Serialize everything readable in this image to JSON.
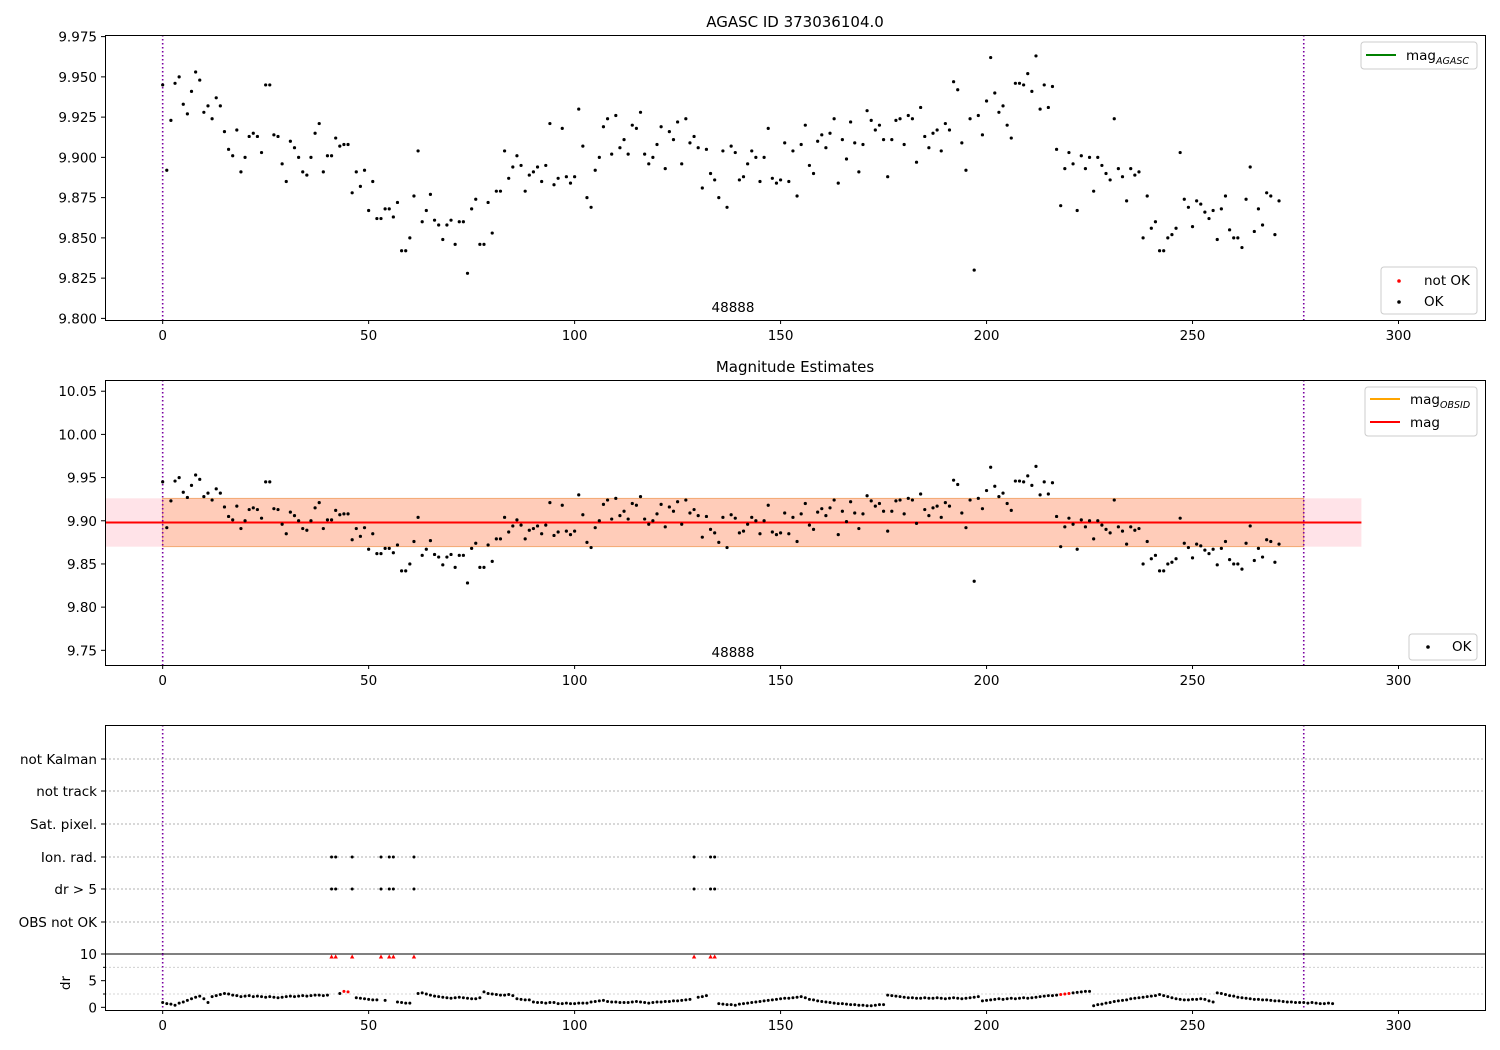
{
  "chart_data": [
    {
      "type": "scatter",
      "title": "AGASC ID 373036104.0",
      "annotation": "48888",
      "xlim": [
        -14,
        321
      ],
      "ylim": [
        9.799,
        9.976
      ],
      "xticks": [
        0,
        50,
        100,
        150,
        200,
        250,
        300
      ],
      "yticks": [
        9.8,
        9.825,
        9.85,
        9.875,
        9.9,
        9.925,
        9.95,
        9.975
      ],
      "y_decimals": 3,
      "vlines": [
        0,
        277
      ],
      "vline_color": "#7a00a0",
      "legend_lines": [
        {
          "label": "mag",
          "sub": "AGASC",
          "color": "#008000"
        }
      ],
      "legend_lines_position": "upper right",
      "legend_points": [
        {
          "label": "not OK",
          "color": "#ff0000"
        },
        {
          "label": "OK",
          "color": "#000000"
        }
      ],
      "legend_points_position": "lower right",
      "series": [
        {
          "name": "OK",
          "color": "#000000",
          "x_start": 0,
          "x_step": 1,
          "values": []
        }
      ]
    },
    {
      "type": "scatter",
      "title": "Magnitude Estimates",
      "annotation": "48888",
      "xlim": [
        -14,
        321
      ],
      "ylim": [
        9.733,
        10.063
      ],
      "xticks": [
        0,
        50,
        100,
        150,
        200,
        250,
        300
      ],
      "yticks": [
        9.75,
        9.8,
        9.85,
        9.9,
        9.95,
        10.0,
        10.05
      ],
      "y_decimals": 2,
      "vlines": [
        0,
        277
      ],
      "vline_color": "#7a00a0",
      "mag": 9.898,
      "mag_color": "#ff0000",
      "band_outer": {
        "x_range": [
          -14,
          291
        ],
        "y_range": [
          9.87,
          9.926
        ],
        "color": "#ffc0cb"
      },
      "band_inner": {
        "x_range": [
          0,
          277
        ],
        "y_range": [
          9.87,
          9.926
        ],
        "color": "#ffb080"
      },
      "legend_lines": [
        {
          "label": "mag",
          "sub": "OBSID",
          "color": "#ffa500"
        },
        {
          "label": "mag",
          "sub": "",
          "color": "#ff0000"
        }
      ],
      "legend_lines_position": "upper right",
      "legend_points": [
        {
          "label": "OK",
          "color": "#000000"
        }
      ],
      "legend_points_position": "lower right",
      "series": [
        {
          "name": "OK",
          "color": "#000000",
          "x_start": 0,
          "x_step": 1,
          "values": []
        }
      ]
    },
    {
      "type": "scatter",
      "title": "",
      "xlim": [
        -14,
        321
      ],
      "categories": [
        "not Kalman",
        "not track",
        "Sat. pixel.",
        "Ion. rad.",
        "dr > 5",
        "OBS not OK"
      ],
      "vlines": [
        0,
        277
      ],
      "vline_color": "#7a00a0",
      "flags": {
        "Ion. rad.": [
          41,
          42,
          46,
          53,
          55,
          56,
          61,
          129,
          133,
          134
        ],
        "dr > 5": [
          41,
          42,
          46,
          53,
          55,
          56,
          61,
          129,
          133,
          134
        ]
      }
    },
    {
      "type": "scatter",
      "title": "",
      "ylabel": "dr",
      "xlim": [
        -14,
        321
      ],
      "ylim": [
        -0.5,
        10
      ],
      "xticks": [
        0,
        50,
        100,
        150,
        200,
        250,
        300
      ],
      "yticks": [
        0,
        5,
        10
      ],
      "vlines": [
        0,
        277
      ],
      "vline_color": "#7a00a0",
      "clipped_x": [
        41,
        42,
        46,
        53,
        55,
        56,
        61,
        129,
        133,
        134
      ],
      "clipped_color": "#ff0000",
      "not_ok_x": [
        44,
        45,
        218,
        219,
        220
      ],
      "series": [
        {
          "name": "dr",
          "color": "#000000",
          "x_start": 0,
          "x_step": 1,
          "values": []
        }
      ]
    }
  ],
  "top_series_values": [
    9.945,
    9.892,
    9.923,
    9.946,
    9.95,
    9.933,
    9.927,
    9.941,
    9.953,
    9.948,
    9.928,
    9.932,
    9.924,
    9.937,
    9.932,
    9.916,
    9.905,
    9.901,
    9.917,
    9.891,
    9.9,
    9.913,
    9.915,
    9.913,
    9.903,
    9.945,
    9.945,
    9.914,
    9.913,
    9.896,
    9.885,
    9.91,
    9.906,
    9.9,
    9.891,
    9.889,
    9.9,
    9.915,
    9.921,
    9.891,
    9.901,
    9.901,
    9.912,
    9.907,
    9.908,
    9.908,
    9.878,
    9.891,
    9.882,
    9.892,
    9.867,
    9.885,
    9.862,
    9.862,
    9.868,
    9.868,
    9.863,
    9.872,
    9.842,
    9.842,
    9.85,
    9.876,
    9.904,
    9.86,
    9.867,
    9.877,
    9.861,
    9.858,
    9.849,
    9.858,
    9.861,
    9.846,
    9.86,
    9.86,
    9.828,
    9.868,
    9.874,
    9.846,
    9.846,
    9.872,
    9.853,
    9.879,
    9.879,
    9.904,
    9.887,
    9.894,
    9.901,
    9.895,
    9.879,
    9.889,
    9.891,
    9.894,
    9.885,
    9.895,
    9.921,
    9.883,
    9.887,
    9.918,
    9.888,
    9.884,
    9.888,
    9.93,
    9.907,
    9.875,
    9.869,
    9.892,
    9.9,
    9.919,
    9.924,
    9.902,
    9.926,
    9.906,
    9.911,
    9.902,
    9.92,
    9.918,
    9.928,
    9.902,
    9.896,
    9.9,
    9.908,
    9.919,
    9.893,
    9.916,
    9.911,
    9.922,
    9.896,
    9.924,
    9.909,
    9.913,
    9.906,
    9.881,
    9.905,
    9.89,
    9.886,
    9.875,
    9.904,
    9.869,
    9.907,
    9.903,
    9.886,
    9.888,
    9.896,
    9.904,
    9.9,
    9.885,
    9.9,
    9.918,
    9.887,
    9.884,
    9.886,
    9.909,
    9.885,
    9.904,
    9.876,
    9.908,
    9.92,
    9.895,
    9.89,
    9.91,
    9.914,
    9.906,
    9.915,
    9.924,
    9.884,
    9.911,
    9.899,
    9.922,
    9.909,
    9.891,
    9.908,
    9.929,
    9.923,
    9.917,
    9.92,
    9.911,
    9.888,
    9.911,
    9.923,
    9.924,
    9.908,
    9.926,
    9.924,
    9.897,
    9.931,
    9.913,
    9.906,
    9.915,
    9.917,
    9.904,
    9.921,
    9.917,
    9.947,
    9.942,
    9.909,
    9.892,
    9.924,
    9.83,
    9.926,
    9.914,
    9.935,
    9.962,
    9.94,
    9.928,
    9.932,
    9.92,
    9.912,
    9.946,
    9.946,
    9.945,
    9.952,
    9.941,
    9.963,
    9.93,
    9.945,
    9.931,
    9.944,
    9.905,
    9.87,
    9.893,
    9.903,
    9.896,
    9.867,
    9.901,
    9.893,
    9.9,
    9.879,
    9.9,
    9.895,
    9.89,
    9.886,
    9.924,
    9.893,
    9.888,
    9.873,
    9.893,
    9.889,
    9.891,
    9.85,
    9.876,
    9.856,
    9.86,
    9.842,
    9.842,
    9.85,
    9.852,
    9.856,
    9.903,
    9.874,
    9.869,
    9.857,
    9.873,
    9.871,
    9.866,
    9.862,
    9.867,
    9.849,
    9.868,
    9.876,
    9.855,
    9.85,
    9.85,
    9.844,
    9.874,
    9.894,
    9.854,
    9.868,
    9.858,
    9.878,
    9.876,
    9.852,
    9.873
  ],
  "dr_values": [
    0.9,
    0.7,
    0.6,
    0.4,
    0.8,
    1.0,
    1.3,
    1.6,
    1.9,
    2.1,
    1.6,
    0.9,
    2.0,
    2.2,
    2.4,
    2.6,
    2.5,
    2.3,
    2.2,
    2.0,
    2.1,
    2.2,
    2.0,
    2.1,
    2.0,
    1.9,
    2.0,
    1.9,
    1.8,
    1.9,
    2.0,
    2.1,
    2.0,
    2.1,
    2.2,
    2.1,
    2.2,
    2.3,
    2.3,
    2.2,
    2.3,
    10.0,
    10.0,
    2.6,
    3.0,
    2.9,
    10.0,
    1.8,
    1.7,
    1.6,
    1.5,
    1.4,
    1.4,
    10.0,
    1.3,
    10.0,
    10.0,
    1.0,
    0.9,
    0.8,
    0.8,
    10.0,
    2.6,
    2.7,
    2.5,
    2.3,
    2.1,
    2.0,
    1.9,
    1.8,
    1.7,
    1.8,
    1.9,
    1.8,
    1.7,
    1.6,
    1.6,
    1.8,
    2.9,
    2.6,
    2.5,
    2.4,
    2.3,
    2.3,
    2.4,
    2.2,
    1.6,
    1.5,
    1.4,
    1.4,
    1.0,
    0.9,
    0.9,
    0.8,
    0.9,
    0.9,
    0.7,
    0.7,
    0.8,
    0.7,
    0.7,
    0.8,
    0.8,
    0.8,
    1.0,
    1.1,
    1.2,
    1.3,
    1.1,
    1.0,
    1.0,
    0.9,
    0.9,
    0.9,
    1.0,
    1.1,
    1.0,
    0.9,
    0.8,
    0.9,
    1.0,
    1.0,
    1.1,
    1.1,
    1.2,
    1.2,
    1.3,
    1.4,
    1.5,
    10.0,
    1.9,
    2.0,
    2.2,
    10.0,
    10.0,
    0.7,
    0.6,
    0.5,
    0.5,
    0.4,
    0.6,
    0.7,
    0.8,
    0.9,
    1.0,
    1.1,
    1.2,
    1.3,
    1.4,
    1.5,
    1.6,
    1.7,
    1.7,
    1.8,
    1.9,
    2.0,
    1.8,
    1.5,
    1.4,
    1.2,
    1.1,
    1.0,
    0.9,
    0.8,
    0.7,
    0.7,
    0.6,
    0.5,
    0.5,
    0.4,
    0.4,
    0.3,
    0.3,
    0.4,
    0.5,
    0.5,
    2.3,
    2.2,
    2.1,
    2.0,
    1.9,
    1.8,
    1.8,
    1.7,
    1.7,
    1.8,
    1.7,
    1.7,
    1.8,
    1.7,
    1.6,
    1.7,
    1.8,
    1.7,
    1.6,
    1.7,
    1.8,
    1.9,
    2.0,
    1.2,
    1.3,
    1.4,
    1.5,
    1.6,
    1.5,
    1.6,
    1.7,
    1.6,
    1.7,
    1.8,
    1.7,
    1.8,
    1.9,
    2.0,
    2.1,
    2.2,
    2.2,
    2.3,
    2.4,
    2.5,
    2.6,
    2.7,
    2.8,
    2.9,
    3.0,
    3.0,
    0.3,
    0.5,
    0.6,
    0.8,
    0.9,
    1.1,
    1.2,
    1.3,
    1.4,
    1.6,
    1.7,
    1.8,
    1.9,
    2.0,
    2.1,
    2.2,
    2.4,
    2.2,
    2.0,
    1.8,
    1.6,
    1.5,
    1.4,
    1.4,
    1.5,
    1.5,
    1.6,
    1.5,
    1.2,
    1.0,
    2.7,
    2.6,
    2.4,
    2.2,
    2.1,
    1.9,
    1.8,
    1.7,
    1.6,
    1.5,
    1.5,
    1.4,
    1.4,
    1.3,
    1.2,
    1.2,
    1.1,
    1.0,
    1.0,
    0.9,
    0.9,
    0.9,
    0.8,
    0.9,
    0.8,
    0.7,
    0.7,
    0.8,
    0.7
  ]
}
